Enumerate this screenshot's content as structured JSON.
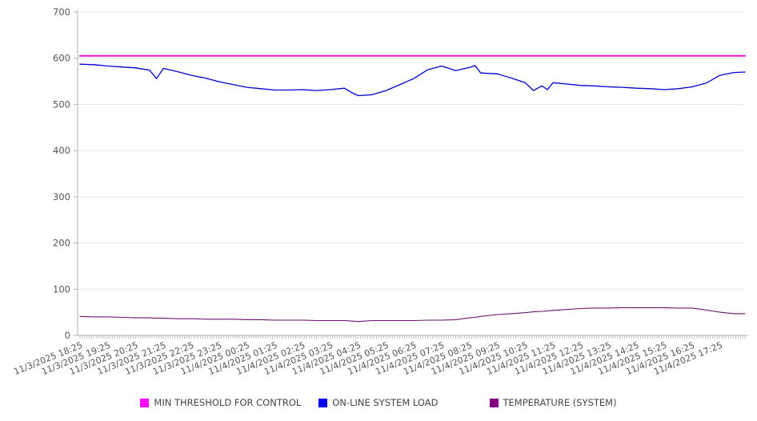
{
  "chart_data": {
    "type": "line",
    "title": "",
    "grid": "horizontal",
    "legend_position": "bottom",
    "ylim": [
      0,
      700
    ],
    "yticks": [
      0,
      100,
      200,
      300,
      400,
      500,
      600,
      700
    ],
    "x_total_hours": 23.9,
    "x_tick_hours": [
      0,
      1,
      2,
      3,
      4,
      5,
      6,
      7,
      8,
      9,
      10,
      11,
      12,
      13,
      14,
      15,
      16,
      17,
      18,
      19,
      20,
      21,
      22,
      23
    ],
    "x_tick_labels": [
      "11/3/2025 18:25",
      "11/3/2025 19:25",
      "11/3/2025 20:25",
      "11/3/2025 21:25",
      "11/3/2025 22:25",
      "11/3/2025 23:25",
      "11/4/2025 00:25",
      "11/4/2025 01:25",
      "11/4/2025 02:25",
      "11/4/2025 03:25",
      "11/4/2025 04:25",
      "11/4/2025 05:25",
      "11/4/2025 06:25",
      "11/4/2025 07:25",
      "11/4/2025 08:25",
      "11/4/2025 09:25",
      "11/4/2025 10:25",
      "11/4/2025 11:25",
      "11/4/2025 12:25",
      "11/4/2025 13:25",
      "11/4/2025 14:25",
      "11/4/2025 15:25",
      "11/4/2025 16:25",
      "11/4/2025 17:25"
    ],
    "colors": {
      "grid": "#e8e8e8",
      "axis": "#b0b0b0",
      "minor_tick": "#999999",
      "tick_label": "#555555",
      "legend_text": "#444444"
    },
    "series": [
      {
        "name": "MIN THRESHOLD FOR CONTROL",
        "line_color": "#e312e3",
        "swatch_color": "#fb0cfb",
        "line_width": 2,
        "x_hours": [
          0,
          23.9
        ],
        "values": [
          605,
          605
        ]
      },
      {
        "name": "ON-LINE SYSTEM LOAD",
        "line_color": "#0000cd",
        "swatch_color": "#0000ee",
        "line_width": 1.3,
        "x_hours": [
          0,
          0.5,
          1,
          1.5,
          2,
          2.5,
          2.75,
          3,
          3.5,
          4,
          4.5,
          5,
          5.5,
          6,
          6.5,
          7,
          7.5,
          8,
          8.5,
          9,
          9.5,
          9.75,
          10,
          10.5,
          11,
          11.5,
          12,
          12.5,
          13,
          13.5,
          14,
          14.2,
          14.4,
          15,
          15.5,
          16,
          16.3,
          16.6,
          16.8,
          17,
          17.5,
          18,
          18.5,
          19,
          19.5,
          20,
          20.5,
          21,
          21.5,
          22,
          22.5,
          23,
          23.5,
          23.9
        ],
        "values": [
          587,
          586,
          583,
          581,
          579,
          574,
          556,
          578,
          571,
          563,
          557,
          549,
          543,
          537,
          534,
          531,
          531,
          532,
          530,
          532,
          535,
          526,
          519,
          521,
          530,
          543,
          556,
          575,
          583,
          573,
          580,
          584,
          568,
          566,
          557,
          547,
          530,
          540,
          532,
          547,
          544,
          541,
          540,
          538,
          537,
          535,
          534,
          532,
          534,
          538,
          546,
          563,
          569,
          570
        ]
      },
      {
        "name": "TEMPERATURE (SYSTEM)",
        "line_color": "#6e106e",
        "swatch_color": "#800080",
        "line_width": 1.1,
        "x_hours": [
          0,
          0.5,
          1,
          1.5,
          2,
          2.5,
          2.75,
          3,
          3.5,
          4,
          4.5,
          5,
          5.5,
          6,
          6.5,
          7,
          7.5,
          8,
          8.5,
          9,
          9.5,
          9.75,
          10,
          10.5,
          11,
          11.5,
          12,
          12.5,
          13,
          13.5,
          14,
          14.2,
          14.4,
          15,
          15.5,
          16,
          16.3,
          16.6,
          16.8,
          17,
          17.5,
          18,
          18.5,
          19,
          19.5,
          20,
          20.5,
          21,
          21.5,
          22,
          22.5,
          23,
          23.5,
          23.9
        ],
        "values": [
          41,
          40,
          40,
          39,
          38,
          38,
          37,
          37,
          36,
          36,
          35,
          35,
          35,
          34,
          34,
          33,
          33,
          33,
          32,
          32,
          32,
          31,
          30,
          32,
          32,
          32,
          32,
          33,
          33,
          34,
          38,
          39,
          41,
          45,
          47,
          49,
          51,
          52,
          53,
          54,
          56,
          58,
          59,
          59,
          60,
          60,
          60,
          60,
          59,
          59,
          55,
          50,
          47,
          47
        ]
      }
    ]
  }
}
